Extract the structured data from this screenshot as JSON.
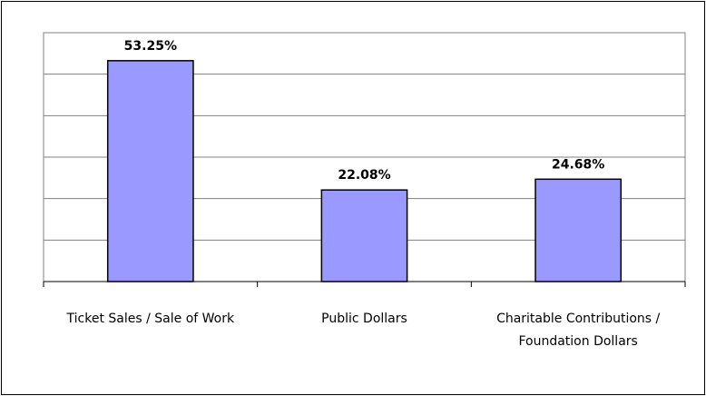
{
  "chart_data": {
    "type": "bar",
    "categories": [
      "Ticket Sales / Sale of Work",
      "Public Dollars",
      "Charitable Contributions / Foundation Dollars"
    ],
    "values": [
      53.25,
      22.08,
      24.68
    ],
    "value_labels": [
      "53.25%",
      "22.08%",
      "24.68%"
    ],
    "color": "#9999ff",
    "ylim": [
      0,
      60
    ],
    "yticks": [
      0,
      10,
      20,
      30,
      40,
      50,
      60
    ],
    "grid": true
  }
}
